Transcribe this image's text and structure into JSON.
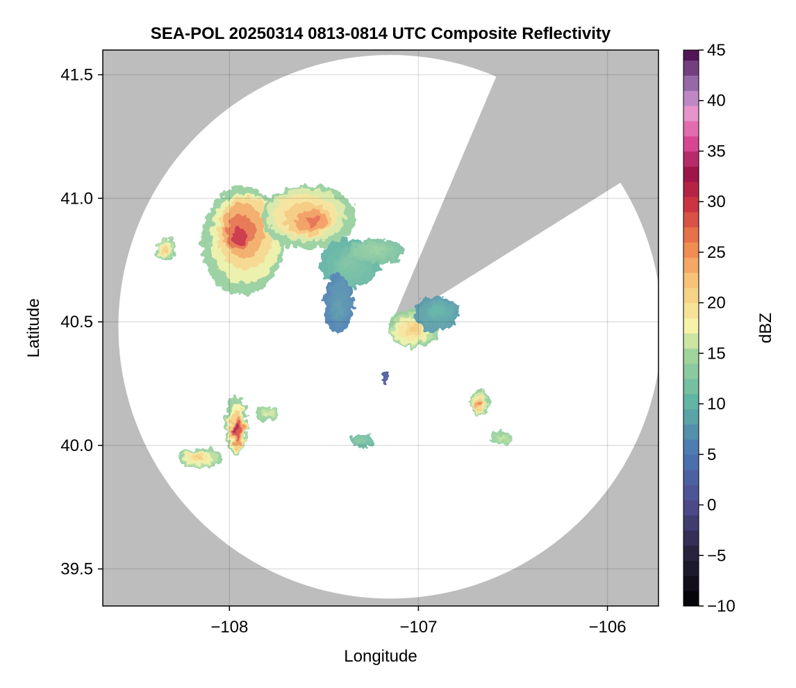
{
  "chart_data": {
    "type": "heatmap",
    "title": "SEA-POL 20250314 0813-0814 UTC Composite Reflectivity",
    "xlabel": "Longitude",
    "ylabel": "Latitude",
    "xlim": [
      -108.67,
      -105.73
    ],
    "ylim": [
      39.35,
      41.6
    ],
    "x_ticks": [
      -108,
      -107,
      -106
    ],
    "x_tick_labels": [
      "−108",
      "−107",
      "−106"
    ],
    "y_ticks": [
      39.5,
      40.0,
      40.5,
      41.0,
      41.5
    ],
    "y_tick_labels": [
      "39.5",
      "40.0",
      "40.5",
      "41.0",
      "41.5"
    ],
    "grid": true,
    "background_color": "#bdbdbd",
    "coverage_color": "#ffffff",
    "radar": {
      "center_lon": -107.15,
      "center_lat": 40.48,
      "range_deg_lat": 1.1,
      "blocked_sectors_deg_from_north": [
        [
          23,
          58
        ]
      ]
    },
    "colorbar": {
      "label": "dBZ",
      "min": -10,
      "max": 45,
      "ticks": [
        -10,
        -5,
        0,
        5,
        10,
        15,
        20,
        25,
        30,
        35,
        40,
        45
      ],
      "tick_labels": [
        "−10",
        "−5",
        "0",
        "5",
        "10",
        "15",
        "20",
        "25",
        "30",
        "35",
        "40",
        "45"
      ],
      "colormap": "spectral_with_dark_low_purple_high",
      "colors": [
        "#000000",
        "#27213a",
        "#4f4a8c",
        "#4a74b4",
        "#5fb3a3",
        "#a2d69b",
        "#f6f4aa",
        "#f6c77a",
        "#ee8049",
        "#c92f43",
        "#9a1447",
        "#dd4b98",
        "#e79bd0",
        "#a77cbd",
        "#4a0f4e"
      ],
      "color_stops": [
        -10,
        -5,
        0,
        5,
        10,
        15,
        17.5,
        22,
        26,
        30,
        33,
        36,
        39,
        41,
        45
      ]
    },
    "echoes": [
      {
        "lon": -107.93,
        "lat": 40.85,
        "r_lon": 0.22,
        "r_lat": 0.22,
        "peak_dbz": 30
      },
      {
        "lon": -107.58,
        "lat": 40.92,
        "r_lon": 0.25,
        "r_lat": 0.13,
        "peak_dbz": 27
      },
      {
        "lon": -107.36,
        "lat": 40.73,
        "r_lon": 0.16,
        "r_lat": 0.1,
        "peak_dbz": 12
      },
      {
        "lon": -107.23,
        "lat": 40.79,
        "r_lon": 0.15,
        "r_lat": 0.05,
        "peak_dbz": 14
      },
      {
        "lon": -107.42,
        "lat": 40.57,
        "r_lon": 0.08,
        "r_lat": 0.12,
        "peak_dbz": 8
      },
      {
        "lon": -107.03,
        "lat": 40.47,
        "r_lon": 0.14,
        "r_lat": 0.08,
        "peak_dbz": 22
      },
      {
        "lon": -106.9,
        "lat": 40.54,
        "r_lon": 0.12,
        "r_lat": 0.07,
        "peak_dbz": 10
      },
      {
        "lon": -108.34,
        "lat": 40.79,
        "r_lon": 0.05,
        "r_lat": 0.05,
        "peak_dbz": 22
      },
      {
        "lon": -107.96,
        "lat": 40.07,
        "r_lon": 0.06,
        "r_lat": 0.12,
        "peak_dbz": 32
      },
      {
        "lon": -108.16,
        "lat": 39.95,
        "r_lon": 0.12,
        "r_lat": 0.04,
        "peak_dbz": 22
      },
      {
        "lon": -107.8,
        "lat": 40.13,
        "r_lon": 0.06,
        "r_lat": 0.03,
        "peak_dbz": 17
      },
      {
        "lon": -106.68,
        "lat": 40.17,
        "r_lon": 0.05,
        "r_lat": 0.05,
        "peak_dbz": 26
      },
      {
        "lon": -106.56,
        "lat": 40.03,
        "r_lon": 0.06,
        "r_lat": 0.03,
        "peak_dbz": 16
      },
      {
        "lon": -107.3,
        "lat": 40.02,
        "r_lon": 0.06,
        "r_lat": 0.03,
        "peak_dbz": 13
      },
      {
        "lon": -107.17,
        "lat": 40.27,
        "r_lon": 0.02,
        "r_lat": 0.03,
        "peak_dbz": 3
      }
    ]
  }
}
